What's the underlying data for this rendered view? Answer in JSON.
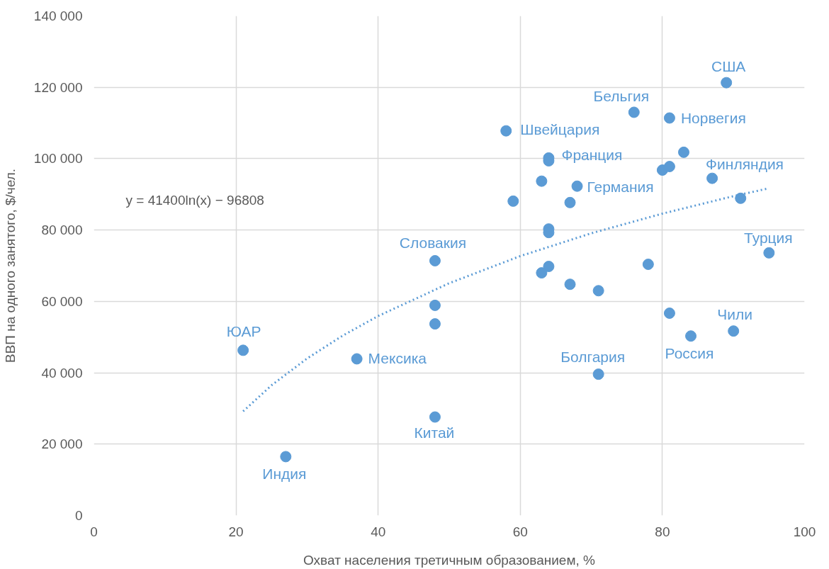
{
  "chart_data": {
    "type": "scatter",
    "xlabel": "Охват населения третичным образованием, %",
    "ylabel": "ВВП на одного занятого, $/чел.",
    "xlim": [
      0,
      100
    ],
    "xticks": [
      0,
      20,
      40,
      60,
      80,
      100
    ],
    "ylim": [
      0,
      140000
    ],
    "yticks": [
      {
        "value": 0,
        "label": "0"
      },
      {
        "value": 20000,
        "label": "20 000"
      },
      {
        "value": 40000,
        "label": "40 000"
      },
      {
        "value": 60000,
        "label": "60 000"
      },
      {
        "value": 80000,
        "label": "80 000"
      },
      {
        "value": 100000,
        "label": "100 000"
      },
      {
        "value": 120000,
        "label": "120 000"
      },
      {
        "value": 140000,
        "label": "140 000"
      }
    ],
    "grid": true,
    "series": [
      {
        "marker": "circle",
        "color": "#5b9bd5",
        "x": [
          89,
          76,
          81,
          58,
          64,
          64,
          83,
          80,
          81,
          87,
          63,
          68,
          59,
          67,
          91,
          64,
          64,
          48,
          78,
          95,
          64,
          63,
          67,
          71,
          48,
          81,
          48,
          90,
          84,
          21,
          37,
          71,
          48,
          27
        ],
        "values": [
          121300,
          113000,
          111400,
          107800,
          100200,
          99400,
          101800,
          96800,
          97800,
          94500,
          93700,
          92300,
          88100,
          87700,
          88900,
          80300,
          79300,
          71400,
          70400,
          73600,
          69800,
          68000,
          64800,
          63000,
          58900,
          56700,
          53700,
          51700,
          50300,
          46300,
          43900,
          39600,
          27600,
          16500
        ]
      },
      {
        "type": "line",
        "color": "#5b9bd5",
        "line_style": "dotted",
        "x": [
          21,
          25,
          30,
          35,
          40,
          50,
          60,
          70,
          80,
          90,
          95
        ],
        "values": [
          29200,
          36500,
          44000,
          50400,
          55900,
          65100,
          72700,
          79100,
          84600,
          89500,
          91700
        ]
      }
    ],
    "annotations": [
      {
        "text": "США",
        "x": 89,
        "y": 121300
      },
      {
        "text": "Бельгия",
        "x": 76,
        "y": 113000
      },
      {
        "text": "Норвегия",
        "x": 81,
        "y": 111400
      },
      {
        "text": "Швейцария",
        "x": 58,
        "y": 107800
      },
      {
        "text": "Франция",
        "x": 64,
        "y": 100200
      },
      {
        "text": "Финляндия",
        "x": 87,
        "y": 94500
      },
      {
        "text": "Германия",
        "x": 68,
        "y": 92300
      },
      {
        "text": "Турция",
        "x": 95,
        "y": 73600
      },
      {
        "text": "Словакия",
        "x": 48,
        "y": 71400
      },
      {
        "text": "Чили",
        "x": 90,
        "y": 51700
      },
      {
        "text": "Россия",
        "x": 84,
        "y": 50300
      },
      {
        "text": "ЮАР",
        "x": 21,
        "y": 46300
      },
      {
        "text": "Мексика",
        "x": 37,
        "y": 43900
      },
      {
        "text": "Болгария",
        "x": 71,
        "y": 39600
      },
      {
        "text": "Китай",
        "x": 48,
        "y": 27600
      },
      {
        "text": "Индия",
        "x": 27,
        "y": 16500
      },
      "y = 41400ln(x) − 96808"
    ]
  }
}
